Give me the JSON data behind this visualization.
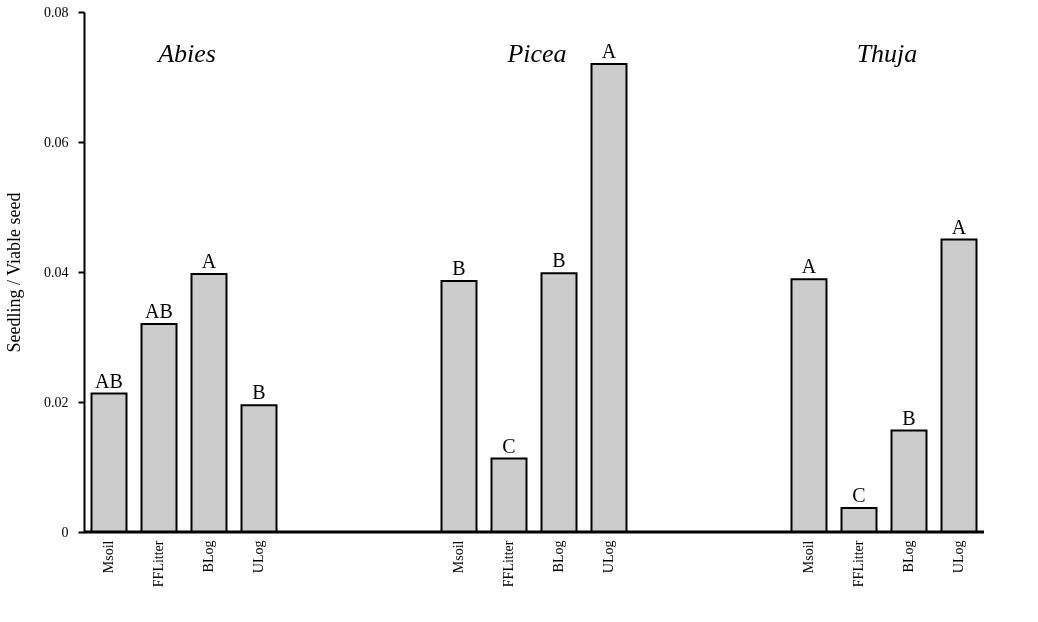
{
  "chart_data": {
    "type": "bar",
    "ylabel": "Seedling / Viable seed",
    "categories": [
      "Msoil",
      "FFLitter",
      "BLog",
      "ULog",
      null,
      null,
      null,
      "Msoil",
      "FFLitter",
      "BLog",
      "ULog",
      null,
      null,
      null,
      "Msoil",
      "FFLitter",
      "BLog",
      "ULog"
    ],
    "values": [
      0.0213,
      0.032,
      0.0397,
      0.0195,
      null,
      null,
      null,
      0.0386,
      0.0113,
      0.0398,
      0.072,
      null,
      null,
      null,
      0.0389,
      0.0037,
      0.0156,
      0.045
    ],
    "value_labels": [
      "AB",
      "AB",
      "A",
      "B",
      null,
      null,
      null,
      "B",
      "C",
      "B",
      "A",
      null,
      null,
      null,
      "A",
      "C",
      "B",
      "A"
    ],
    "color": "#cccccc",
    "annotations": [
      "Abies",
      "Picea",
      "Thuja"
    ],
    "ylim": [
      0,
      0.08
    ],
    "yticks": [
      0,
      0.02,
      0.04,
      0.06,
      0.08
    ],
    "grid": false
  }
}
